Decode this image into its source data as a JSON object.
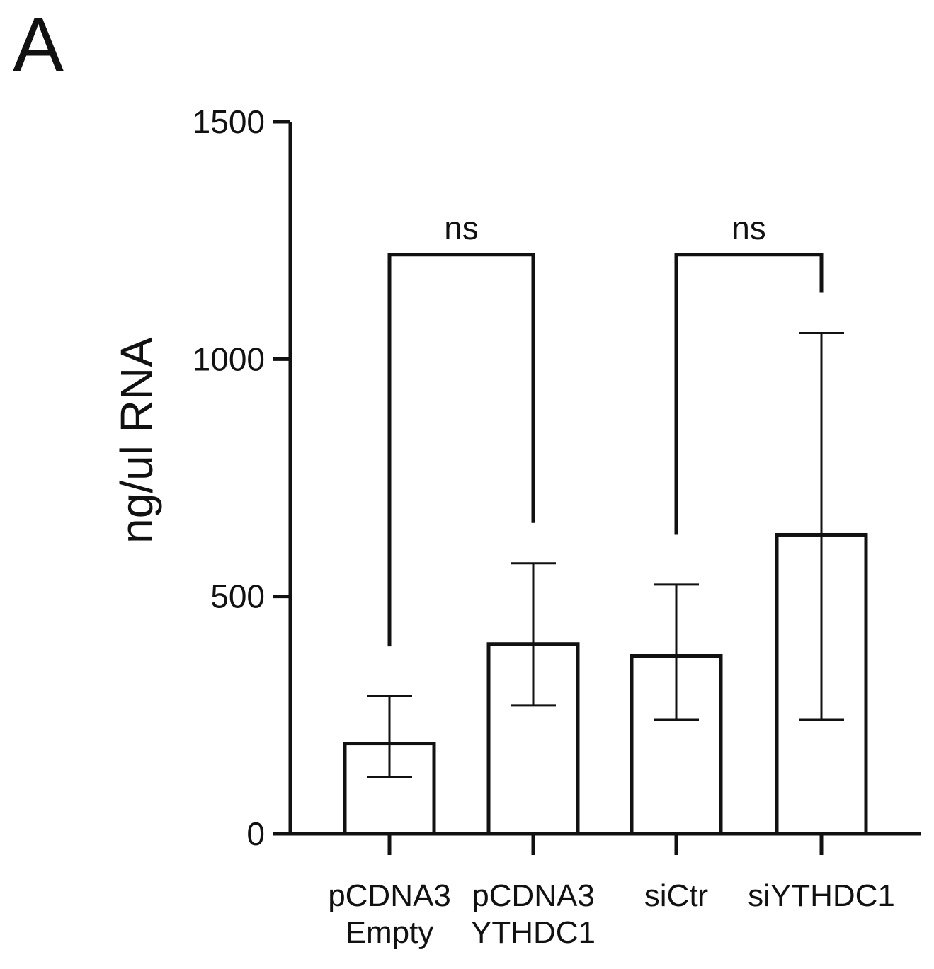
{
  "panel_label": "A",
  "chart_data": {
    "type": "bar",
    "title": "",
    "xlabel": "",
    "ylabel": "ng/ul RNA",
    "ylim": [
      0,
      1500
    ],
    "yticks": [
      0,
      500,
      1000,
      1500
    ],
    "grid": false,
    "categories": [
      [
        "pCDNA3",
        "Empty"
      ],
      [
        "pCDNA3",
        "YTHDC1"
      ],
      [
        "siCtr"
      ],
      [
        "siYTHDC1"
      ]
    ],
    "values": [
      190,
      400,
      375,
      630
    ],
    "error_low": [
      120,
      270,
      240,
      240
    ],
    "error_high": [
      290,
      570,
      525,
      1055
    ],
    "bar_fill": "#ffffff",
    "bar_stroke": "#111111",
    "comparisons": [
      {
        "from": 0,
        "to": 1,
        "label": "ns",
        "bracket_y": 1220,
        "left_end": 395,
        "right_end": 655
      },
      {
        "from": 2,
        "to": 3,
        "label": "ns",
        "bracket_y": 1220,
        "left_end": 630,
        "right_end": 1140
      }
    ]
  }
}
